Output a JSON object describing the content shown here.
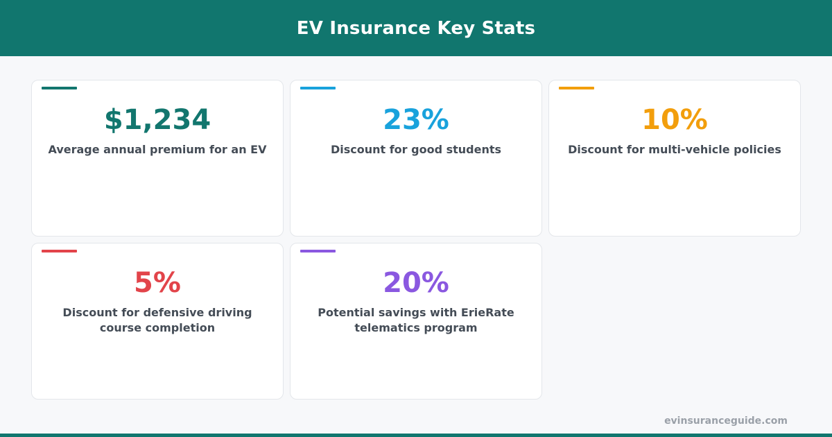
{
  "header": {
    "title": "EV Insurance Key Stats"
  },
  "stats": [
    {
      "value": "$1,234",
      "label": "Average annual premium for an EV",
      "color": "#12766e"
    },
    {
      "value": "23%",
      "label": "Discount for good students",
      "color": "#19a2dc"
    },
    {
      "value": "10%",
      "label": "Discount for multi-vehicle policies",
      "color": "#f29e0c"
    },
    {
      "value": "5%",
      "label": "Discount for defensive driving course completion",
      "color": "#e2444a"
    },
    {
      "value": "20%",
      "label": "Potential savings with ErieRate telematics program",
      "color": "#8a58e0"
    }
  ],
  "footer": {
    "site": "evinsuranceguide.com"
  },
  "theme": {
    "header_bg": "#11766e",
    "page_bg": "#f7f8fa"
  }
}
